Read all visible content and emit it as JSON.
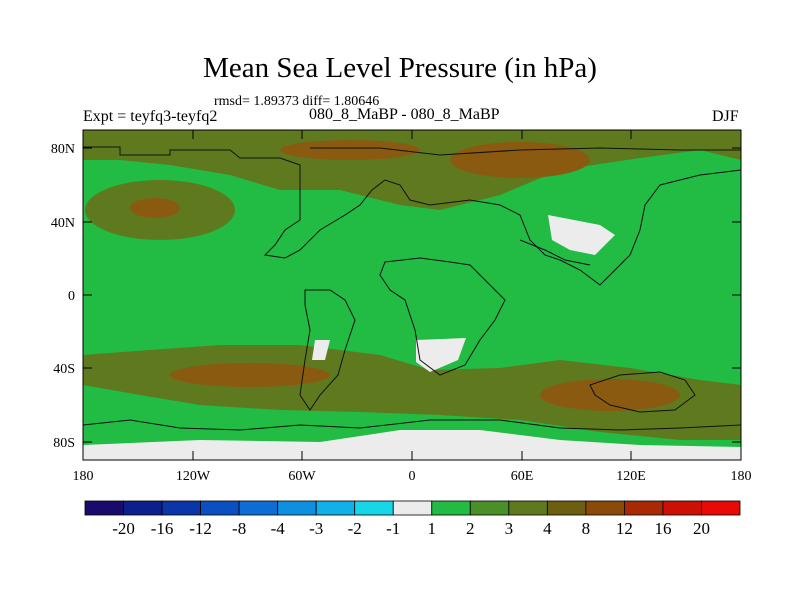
{
  "title": "Mean Sea Level Pressure (in hPa)",
  "stats": "rmsd= 1.89373 diff= 1.80646",
  "left_label": "Expt = teyfq3-teyfq2",
  "center_label": "080_8_MaBP - 080_8_MaBP",
  "right_label": "DJF",
  "map": {
    "lat_ticks": [
      "80N",
      "40N",
      "0",
      "40S",
      "80S"
    ],
    "lon_ticks": [
      "180",
      "120W",
      "60W",
      "0",
      "60E",
      "120E",
      "180"
    ],
    "colors": {
      "bg_green": "#22bb44",
      "olive": "#5f7a1e",
      "brown": "#8a5a10",
      "white_patch": "#ececec",
      "coast": "#111111"
    }
  },
  "colorbar": {
    "labels": [
      "-20",
      "-16",
      "-12",
      "-8",
      "-4",
      "-3",
      "-2",
      "-1",
      "1",
      "2",
      "3",
      "4",
      "8",
      "12",
      "16",
      "20"
    ],
    "colors": [
      "#1a0a6b",
      "#0d1f8c",
      "#0a36a8",
      "#0a50c2",
      "#0d6dd4",
      "#0e8fe0",
      "#12b0e8",
      "#17d6e8",
      "#ececec",
      "#22bb44",
      "#4a8f28",
      "#5f7a1e",
      "#6e5f10",
      "#8a4a08",
      "#a82a05",
      "#cc1005",
      "#e80a05"
    ]
  }
}
